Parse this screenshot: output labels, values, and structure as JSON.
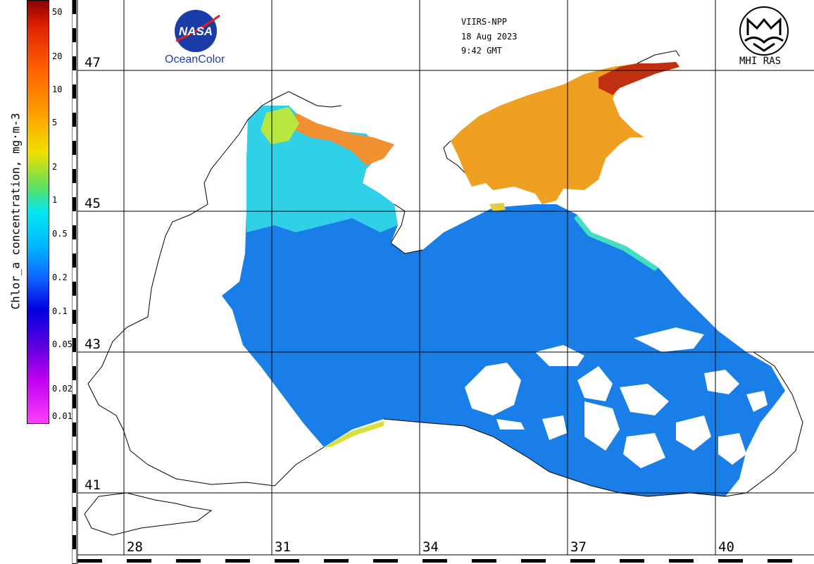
{
  "header": {
    "sensor": "VIIRS-NPP",
    "date": "18 Aug 2023",
    "time": "9:42 GMT"
  },
  "logos": {
    "nasa_text": "NASA",
    "oceancolor_text": "OceanColor",
    "mhi_text": "MHI RAS"
  },
  "colorbar": {
    "title": "Chlor_a concentration, mg·m-3",
    "ticks": [
      "50",
      "20",
      "10",
      "5",
      "2",
      "1",
      "0.5",
      "0.2",
      "0.1",
      "0.05",
      "0.02",
      "0.01"
    ],
    "colors": {
      "top": "#8b0000",
      "red": "#e02000",
      "orange": "#ff8c00",
      "yellow": "#f0e000",
      "green": "#90e030",
      "cyan": "#00f0f0",
      "blue": "#1060ff",
      "deep_blue": "#0000e0",
      "purple": "#9000e0",
      "magenta": "#ff40ff"
    }
  },
  "grid": {
    "latitudes": [
      "47",
      "45",
      "43",
      "41"
    ],
    "longitudes": [
      "28",
      "31",
      "34",
      "37",
      "40"
    ]
  },
  "map": {
    "ocean_color": "#1a7ee8",
    "coastal_color": "#3fd8e8",
    "azov_color": "#f0a020",
    "land_color": "#ffffff",
    "coastline_color": "#000000"
  }
}
